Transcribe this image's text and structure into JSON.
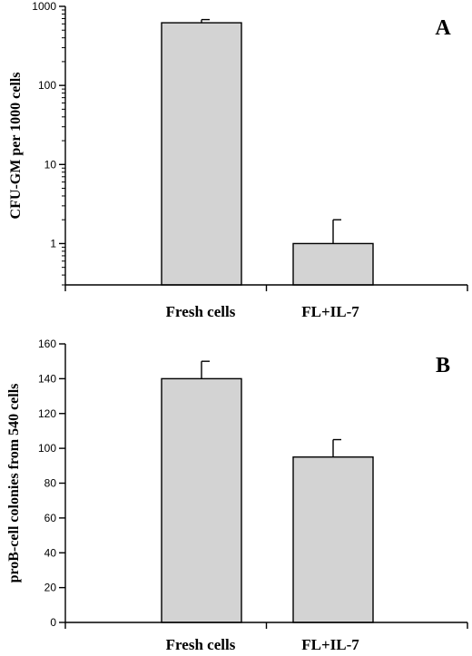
{
  "chart_data": [
    {
      "type": "bar",
      "panel_label": "A",
      "ylabel": "CFU-GM per 1000 cells",
      "yscale": "log",
      "ylim": [
        0.3,
        1000
      ],
      "yticks": [
        1,
        10,
        100,
        1000
      ],
      "ytick_labels": [
        "1",
        "10",
        "100",
        "1000"
      ],
      "categories": [
        "Fresh cells",
        "FL+IL-7"
      ],
      "values": [
        620,
        1
      ],
      "errors": [
        60,
        1
      ],
      "bar_color": "#d3d3d3"
    },
    {
      "type": "bar",
      "panel_label": "B",
      "ylabel": "proB-cell colonies from 540 cells",
      "yscale": "linear",
      "ylim": [
        0,
        160
      ],
      "yticks": [
        0,
        20,
        40,
        60,
        80,
        100,
        120,
        140,
        160
      ],
      "ytick_labels": [
        "0",
        "20",
        "40",
        "60",
        "80",
        "100",
        "120",
        "140",
        "160"
      ],
      "categories": [
        "Fresh cells",
        "FL+IL-7"
      ],
      "values": [
        140,
        95
      ],
      "errors": [
        10,
        10
      ],
      "bar_color": "#d3d3d3"
    }
  ]
}
